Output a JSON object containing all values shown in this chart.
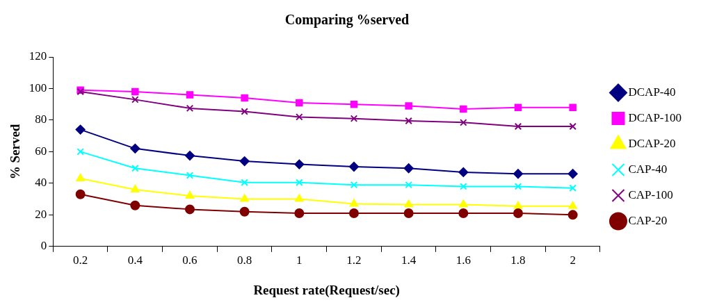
{
  "chart_data": {
    "type": "line",
    "title": "Comparing %served",
    "xlabel": "Request rate(Request/sec)",
    "ylabel": "% Served",
    "categories": [
      "0.2",
      "0.4",
      "0.6",
      "0.8",
      "1",
      "1.2",
      "1.4",
      "1.6",
      "1.8",
      "2"
    ],
    "ylim": [
      0,
      120
    ],
    "yticks": [
      0,
      20,
      40,
      60,
      80,
      100,
      120
    ],
    "grid": false,
    "legend": "right",
    "line_style": "solid",
    "series": [
      {
        "name": "DCAP-40",
        "color": "#000080",
        "marker": "diamond",
        "values": [
          74,
          62,
          57.5,
          54,
          52,
          50.5,
          49.5,
          47,
          46,
          46
        ]
      },
      {
        "name": "DCAP-100",
        "color": "#ff00ff",
        "marker": "square",
        "values": [
          99,
          98,
          96,
          94,
          91,
          90,
          89,
          87,
          88,
          88
        ]
      },
      {
        "name": "DCAP-20",
        "color": "#ffff00",
        "marker": "triangle",
        "values": [
          43,
          36,
          32,
          30,
          30,
          27,
          26.5,
          26.5,
          25.5,
          25.5
        ]
      },
      {
        "name": "CAP-40",
        "color": "#00ffff",
        "marker": "cross",
        "values": [
          60,
          49.5,
          45,
          40.5,
          40.5,
          39,
          39,
          38,
          38,
          37
        ]
      },
      {
        "name": "CAP-100",
        "color": "#800080",
        "marker": "cross",
        "values": [
          98,
          93,
          87.5,
          85.5,
          82,
          81,
          79.5,
          78.5,
          76,
          76
        ]
      },
      {
        "name": "CAP-20",
        "color": "#800000",
        "marker": "circle",
        "values": [
          33,
          26,
          23.5,
          22,
          21,
          21,
          21,
          21,
          21,
          20
        ]
      }
    ]
  }
}
